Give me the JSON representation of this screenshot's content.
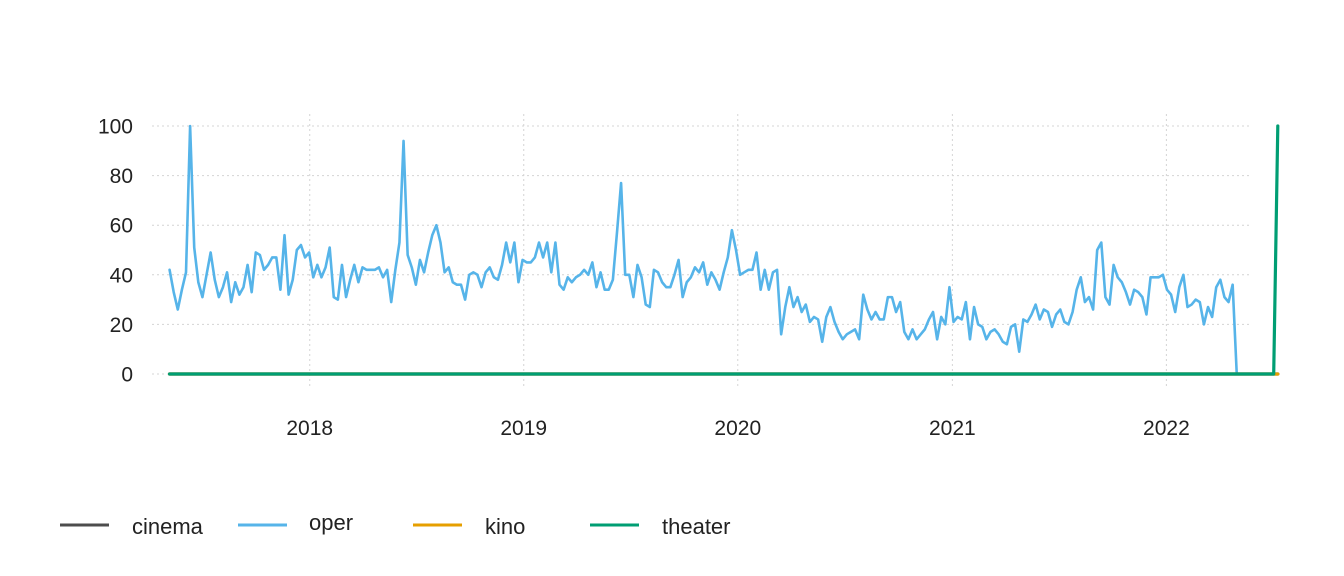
{
  "chart_data": {
    "type": "line",
    "title": "",
    "xlabel": "",
    "ylabel": "",
    "ylim": [
      0,
      100
    ],
    "xlim": [
      "2017-04-07",
      "2022-05-27"
    ],
    "y_ticks": [
      0,
      20,
      40,
      60,
      80,
      100
    ],
    "x_ticks": [
      {
        "date": "2018-01-01",
        "label": "2018"
      },
      {
        "date": "2019-01-01",
        "label": "2019"
      },
      {
        "date": "2020-01-01",
        "label": "2020"
      },
      {
        "date": "2021-01-01",
        "label": "2021"
      },
      {
        "date": "2022-01-01",
        "label": "2022"
      }
    ],
    "grid": true,
    "legend_position": "bottom",
    "x_start": "2017-05-07",
    "x_interval_days": 7,
    "series": [
      {
        "name": "cinema",
        "color": "#4d4d4d",
        "values": [
          0,
          0,
          0,
          0,
          0,
          0,
          0,
          0,
          0,
          0,
          0,
          0,
          0,
          0,
          0,
          0,
          0,
          0,
          0,
          0,
          0,
          0,
          0,
          0,
          0,
          0,
          0,
          0,
          0,
          0,
          0,
          0,
          0,
          0,
          0,
          0,
          0,
          0,
          0,
          0,
          0,
          0,
          0,
          0,
          0,
          0,
          0,
          0,
          0,
          0,
          0,
          0,
          0,
          0,
          0,
          0,
          0,
          0,
          0,
          0,
          0,
          0,
          0,
          0,
          0,
          0,
          0,
          0,
          0,
          0,
          0,
          0,
          0,
          0,
          0,
          0,
          0,
          0,
          0,
          0,
          0,
          0,
          0,
          0,
          0,
          0,
          0,
          0,
          0,
          0,
          0,
          0,
          0,
          0,
          0,
          0,
          0,
          0,
          0,
          0,
          0,
          0,
          0,
          0,
          0,
          0,
          0,
          0,
          0,
          0,
          0,
          0,
          0,
          0,
          0,
          0,
          0,
          0,
          0,
          0,
          0,
          0,
          0,
          0,
          0,
          0,
          0,
          0,
          0,
          0,
          0,
          0,
          0,
          0,
          0,
          0,
          0,
          0,
          0,
          0,
          0,
          0,
          0,
          0,
          0,
          0,
          0,
          0,
          0,
          0,
          0,
          0,
          0,
          0,
          0,
          0,
          0,
          0,
          0,
          0,
          0,
          0,
          0,
          0,
          0,
          0,
          0,
          0,
          0,
          0,
          0,
          0,
          0,
          0,
          0,
          0,
          0,
          0,
          0,
          0,
          0,
          0,
          0,
          0,
          0,
          0,
          0,
          0,
          0,
          0,
          0,
          0,
          0,
          0,
          0,
          0,
          0,
          0,
          0,
          0,
          0,
          0,
          0,
          0,
          0,
          0,
          0,
          0,
          0,
          0,
          0,
          0,
          0,
          0,
          0,
          0,
          0,
          0,
          0,
          0,
          0,
          0,
          0,
          0,
          0,
          0,
          0,
          0,
          0,
          0,
          0,
          0,
          0,
          0,
          0,
          0,
          0,
          0,
          0,
          0,
          0,
          0,
          0,
          0,
          0,
          0,
          0,
          0,
          0,
          0,
          0,
          0,
          0,
          0,
          0,
          0,
          0,
          0,
          0,
          0,
          0,
          0,
          0,
          0,
          0,
          0,
          0,
          0,
          0,
          0,
          0
        ]
      },
      {
        "name": "oper",
        "color": "#56b4e9",
        "values": [
          42,
          33,
          26,
          34,
          41,
          100,
          51,
          37,
          31,
          40,
          49,
          38,
          31,
          35,
          41,
          29,
          37,
          32,
          35,
          44,
          33,
          49,
          48,
          42,
          44,
          47,
          47,
          34,
          56,
          32,
          38,
          50,
          52,
          47,
          49,
          39,
          44,
          39,
          43,
          51,
          31,
          30,
          44,
          31,
          38,
          44,
          37,
          43,
          42,
          42,
          42,
          43,
          39,
          42,
          29,
          42,
          53,
          94,
          48,
          43,
          36,
          46,
          41,
          49,
          56,
          60,
          53,
          41,
          43,
          37,
          36,
          36,
          30,
          40,
          41,
          40,
          35,
          41,
          43,
          39,
          38,
          44,
          53,
          45,
          53,
          37,
          46,
          45,
          45,
          47,
          53,
          47,
          53,
          41,
          53,
          36,
          34,
          39,
          37,
          39,
          40,
          42,
          40,
          45,
          35,
          41,
          34,
          34,
          38,
          57,
          77,
          40,
          40,
          31,
          44,
          39,
          28,
          27,
          42,
          41,
          37,
          35,
          35,
          40,
          46,
          31,
          37,
          39,
          43,
          41,
          45,
          36,
          41,
          38,
          34,
          41,
          47,
          58,
          50,
          40,
          41,
          42,
          42,
          49,
          34,
          42,
          34,
          41,
          42,
          16,
          27,
          35,
          27,
          31,
          25,
          28,
          21,
          23,
          22,
          13,
          23,
          27,
          21,
          17,
          14,
          16,
          17,
          18,
          14,
          32,
          26,
          22,
          25,
          22,
          22,
          31,
          31,
          25,
          29,
          17,
          14,
          18,
          14,
          16,
          18,
          22,
          25,
          14,
          23,
          20,
          35,
          21,
          23,
          22,
          29,
          14,
          27,
          20,
          19,
          14,
          17,
          18,
          16,
          13,
          12,
          19,
          20,
          9,
          22,
          21,
          24,
          28,
          22,
          26,
          25,
          19,
          24,
          26,
          21,
          20,
          25,
          34,
          39,
          29,
          31,
          26,
          50,
          53,
          31,
          28,
          44,
          39,
          37,
          33,
          28,
          34,
          33,
          31,
          24,
          39,
          39,
          39,
          40,
          34,
          32,
          25,
          35,
          40,
          27,
          28,
          30,
          29,
          20,
          27,
          23,
          35,
          38,
          31,
          29,
          36,
          0
        ]
      },
      {
        "name": "kino",
        "color": "#e69f00",
        "values": [
          0,
          0,
          0,
          0,
          0,
          0,
          0,
          0,
          0,
          0,
          0,
          0,
          0,
          0,
          0,
          0,
          0,
          0,
          0,
          0,
          0,
          0,
          0,
          0,
          0,
          0,
          0,
          0,
          0,
          0,
          0,
          0,
          0,
          0,
          0,
          0,
          0,
          0,
          0,
          0,
          0,
          0,
          0,
          0,
          0,
          0,
          0,
          0,
          0,
          0,
          0,
          0,
          0,
          0,
          0,
          0,
          0,
          0,
          0,
          0,
          0,
          0,
          0,
          0,
          0,
          0,
          0,
          0,
          0,
          0,
          0,
          0,
          0,
          0,
          0,
          0,
          0,
          0,
          0,
          0,
          0,
          0,
          0,
          0,
          0,
          0,
          0,
          0,
          0,
          0,
          0,
          0,
          0,
          0,
          0,
          0,
          0,
          0,
          0,
          0,
          0,
          0,
          0,
          0,
          0,
          0,
          0,
          0,
          0,
          0,
          0,
          0,
          0,
          0,
          0,
          0,
          0,
          0,
          0,
          0,
          0,
          0,
          0,
          0,
          0,
          0,
          0,
          0,
          0,
          0,
          0,
          0,
          0,
          0,
          0,
          0,
          0,
          0,
          0,
          0,
          0,
          0,
          0,
          0,
          0,
          0,
          0,
          0,
          0,
          0,
          0,
          0,
          0,
          0,
          0,
          0,
          0,
          0,
          0,
          0,
          0,
          0,
          0,
          0,
          0,
          0,
          0,
          0,
          0,
          0,
          0,
          0,
          0,
          0,
          0,
          0,
          0,
          0,
          0,
          0,
          0,
          0,
          0,
          0,
          0,
          0,
          0,
          0,
          0,
          0,
          0,
          0,
          0,
          0,
          0,
          0,
          0,
          0,
          0,
          0,
          0,
          0,
          0,
          0,
          0,
          0,
          0,
          0,
          0,
          0,
          0,
          0,
          0,
          0,
          0,
          0,
          0,
          0,
          0,
          0,
          0,
          0,
          0,
          0,
          0,
          0,
          0,
          0,
          0,
          0,
          0,
          0,
          0,
          0,
          0,
          0,
          0,
          0,
          0,
          0,
          0,
          0,
          0,
          0,
          0,
          0,
          0,
          0,
          0,
          0,
          0,
          0,
          0,
          0,
          0,
          0,
          0,
          0,
          0,
          0,
          0,
          0,
          0,
          0,
          0,
          0,
          0,
          0,
          0,
          0,
          0
        ]
      },
      {
        "name": "theater",
        "color": "#009e73",
        "values": [
          0,
          0,
          0,
          0,
          0,
          0,
          0,
          0,
          0,
          0,
          0,
          0,
          0,
          0,
          0,
          0,
          0,
          0,
          0,
          0,
          0,
          0,
          0,
          0,
          0,
          0,
          0,
          0,
          0,
          0,
          0,
          0,
          0,
          0,
          0,
          0,
          0,
          0,
          0,
          0,
          0,
          0,
          0,
          0,
          0,
          0,
          0,
          0,
          0,
          0,
          0,
          0,
          0,
          0,
          0,
          0,
          0,
          0,
          0,
          0,
          0,
          0,
          0,
          0,
          0,
          0,
          0,
          0,
          0,
          0,
          0,
          0,
          0,
          0,
          0,
          0,
          0,
          0,
          0,
          0,
          0,
          0,
          0,
          0,
          0,
          0,
          0,
          0,
          0,
          0,
          0,
          0,
          0,
          0,
          0,
          0,
          0,
          0,
          0,
          0,
          0,
          0,
          0,
          0,
          0,
          0,
          0,
          0,
          0,
          0,
          0,
          0,
          0,
          0,
          0,
          0,
          0,
          0,
          0,
          0,
          0,
          0,
          0,
          0,
          0,
          0,
          0,
          0,
          0,
          0,
          0,
          0,
          0,
          0,
          0,
          0,
          0,
          0,
          0,
          0,
          0,
          0,
          0,
          0,
          0,
          0,
          0,
          0,
          0,
          0,
          0,
          0,
          0,
          0,
          0,
          0,
          0,
          0,
          0,
          0,
          0,
          0,
          0,
          0,
          0,
          0,
          0,
          0,
          0,
          0,
          0,
          0,
          0,
          0,
          0,
          0,
          0,
          0,
          0,
          0,
          0,
          0,
          0,
          0,
          0,
          0,
          0,
          0,
          0,
          0,
          0,
          0,
          0,
          0,
          0,
          0,
          0,
          0,
          0,
          0,
          0,
          0,
          0,
          0,
          0,
          0,
          0,
          0,
          0,
          0,
          0,
          0,
          0,
          0,
          0,
          0,
          0,
          0,
          0,
          0,
          0,
          0,
          0,
          0,
          0,
          0,
          0,
          0,
          0,
          0,
          0,
          0,
          0,
          0,
          0,
          0,
          0,
          0,
          0,
          0,
          0,
          0,
          0,
          0,
          0,
          0,
          0,
          0,
          0,
          0,
          0,
          0,
          0,
          0,
          0,
          0,
          0,
          0,
          0,
          0,
          0,
          0,
          0,
          0,
          0,
          0,
          0,
          0,
          0,
          0,
          100
        ]
      }
    ]
  }
}
